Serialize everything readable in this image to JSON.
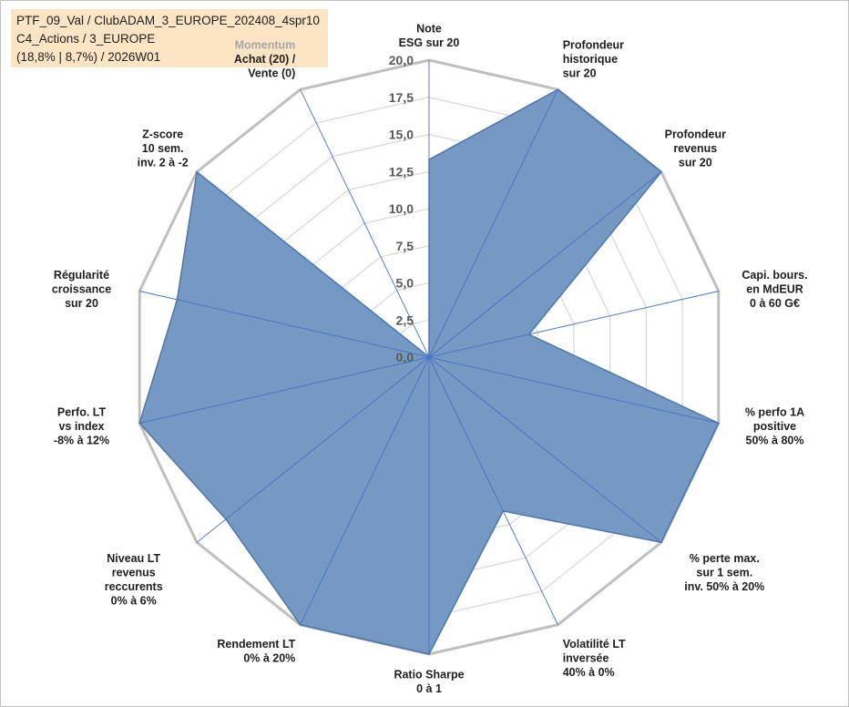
{
  "info": {
    "line1": "PTF_09_Val / ClubADAM_3_EUROPE_202408_4spr10",
    "line2": "C4_Actions / 3_EUROPE",
    "line3": "(18,8% | 8,7%) / 2026W01"
  },
  "colors": {
    "fill": "#6f93c0",
    "stroke": "#4f76a8",
    "spoke": "#4472c4",
    "grid_outer": "#bfbfbf",
    "grid_inner": "#d9d9d9"
  },
  "chart_data": {
    "type": "radar",
    "max": 20,
    "step": 2.5,
    "ticks": [
      "0,0",
      "2,5",
      "5,0",
      "7,5",
      "10,0",
      "12,5",
      "15,0",
      "17,5",
      "20,0"
    ],
    "axes": [
      {
        "label": [
          "Note",
          "ESG sur 20"
        ],
        "value": 13.3
      },
      {
        "label": [
          "Profondeur",
          "historique",
          "sur 20"
        ],
        "value": 20
      },
      {
        "label": [
          "Profondeur",
          "revenus",
          "sur 20"
        ],
        "value": 20
      },
      {
        "label": [
          "Capi. bours.",
          "en MdEUR",
          "0 à 60 G€"
        ],
        "value": 6.9
      },
      {
        "label": [
          "% perfo 1A",
          "positive",
          "50% à 80%"
        ],
        "value": 20
      },
      {
        "label": [
          "% perte max.",
          "sur 1 sem.",
          "inv. 50% à 20%"
        ],
        "value": 20
      },
      {
        "label": [
          "Volatilité LT",
          "inversée",
          "40% à 0%"
        ],
        "value": 11.5
      },
      {
        "label": [
          "Ratio Sharpe",
          "0 à 1"
        ],
        "value": 20
      },
      {
        "label": [
          "Rendement LT",
          "0% à 20%"
        ],
        "value": 20
      },
      {
        "label": [
          "Niveau LT",
          "revenus",
          "reccurents",
          "0% à 6%"
        ],
        "value": 17.5
      },
      {
        "label": [
          "Perfo. LT",
          "vs index",
          "-8% à 12%"
        ],
        "value": 20
      },
      {
        "label": [
          "Régularité",
          "croissance",
          "sur 20"
        ],
        "value": 17.4
      },
      {
        "label": [
          "Z-score",
          "10 sem.",
          "inv. 2 à -2"
        ],
        "value": 20
      },
      {
        "label": [
          "Momentum",
          "Achat (20) /",
          "Vente (0)"
        ],
        "value": 0
      }
    ]
  }
}
